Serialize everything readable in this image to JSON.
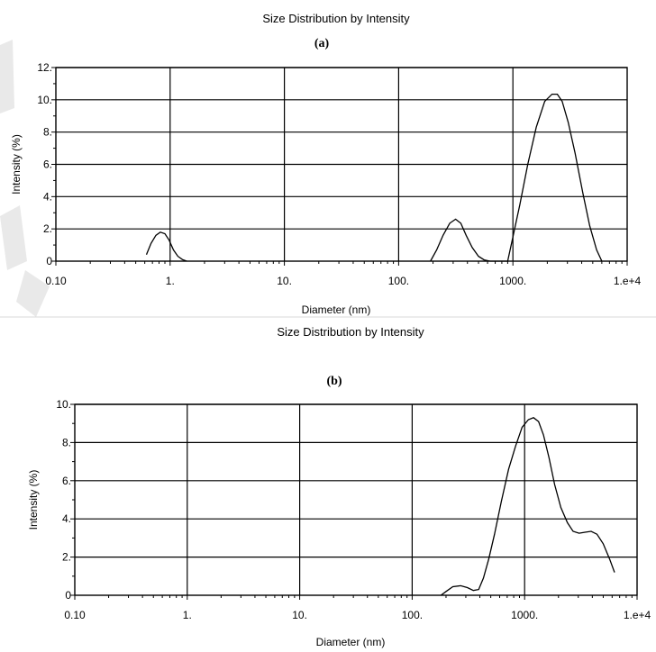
{
  "chart_data": [
    {
      "type": "line",
      "title": "Size Distribution by Intensity",
      "subtitle": "(a)",
      "xlabel": "Diameter (nm)",
      "ylabel": "Intensity (%)",
      "xscale": "log",
      "xlim": [
        0.1,
        10000
      ],
      "ylim": [
        0,
        12
      ],
      "x_tick_labels": [
        "0.10",
        "1.",
        "10.",
        "100.",
        "1000.",
        "1.e+4"
      ],
      "y_tick_labels": [
        "0",
        "2.",
        "4.",
        "6.",
        "8.",
        "10.",
        "12."
      ],
      "y_tick_values": [
        0,
        2,
        4,
        6,
        8,
        10,
        12
      ],
      "grid": true,
      "series": [
        {
          "x": [
            0.62,
            0.68,
            0.75,
            0.82,
            0.9,
            0.98,
            1.07,
            1.17,
            1.28,
            1.4,
            190,
            215,
            245,
            280,
            315,
            350,
            390,
            440,
            500,
            560,
            630,
            900,
            1000,
            1150,
            1350,
            1600,
            1900,
            2200,
            2450,
            2700,
            3050,
            3500,
            4100,
            4700,
            5400,
            6000
          ],
          "y": [
            0.4,
            1.1,
            1.6,
            1.8,
            1.7,
            1.3,
            0.7,
            0.3,
            0.1,
            0,
            0,
            0.7,
            1.6,
            2.35,
            2.6,
            2.35,
            1.6,
            0.85,
            0.3,
            0.08,
            0,
            0,
            1.5,
            3.5,
            6.0,
            8.3,
            9.9,
            10.35,
            10.35,
            9.9,
            8.6,
            6.7,
            4.2,
            2.2,
            0.7,
            0
          ]
        }
      ]
    },
    {
      "type": "line",
      "title": "Size Distribution by Intensity",
      "subtitle": "(b)",
      "xlabel": "Diameter (nm)",
      "ylabel": "Intensity (%)",
      "xscale": "log",
      "xlim": [
        0.1,
        10000
      ],
      "ylim": [
        0,
        10
      ],
      "x_tick_labels": [
        "0.10",
        "1.",
        "10.",
        "100.",
        "1000.",
        "1.e+4"
      ],
      "y_tick_labels": [
        "0",
        "2.",
        "4.",
        "6.",
        "8.",
        "10."
      ],
      "y_tick_values": [
        0,
        2,
        4,
        6,
        8,
        10
      ],
      "grid": true,
      "series": [
        {
          "x": [
            180,
            200,
            230,
            270,
            310,
            350,
            390,
            430,
            480,
            540,
            620,
            720,
            830,
            950,
            1080,
            1200,
            1330,
            1470,
            1650,
            1850,
            2100,
            2400,
            2700,
            3050,
            3450,
            3900,
            4400,
            5000,
            5700,
            6300
          ],
          "y": [
            0,
            0.2,
            0.45,
            0.5,
            0.4,
            0.25,
            0.3,
            0.9,
            1.9,
            3.2,
            4.9,
            6.6,
            7.8,
            8.8,
            9.2,
            9.3,
            9.1,
            8.4,
            7.2,
            5.8,
            4.6,
            3.8,
            3.35,
            3.25,
            3.3,
            3.35,
            3.2,
            2.7,
            1.9,
            1.2
          ]
        }
      ]
    }
  ]
}
